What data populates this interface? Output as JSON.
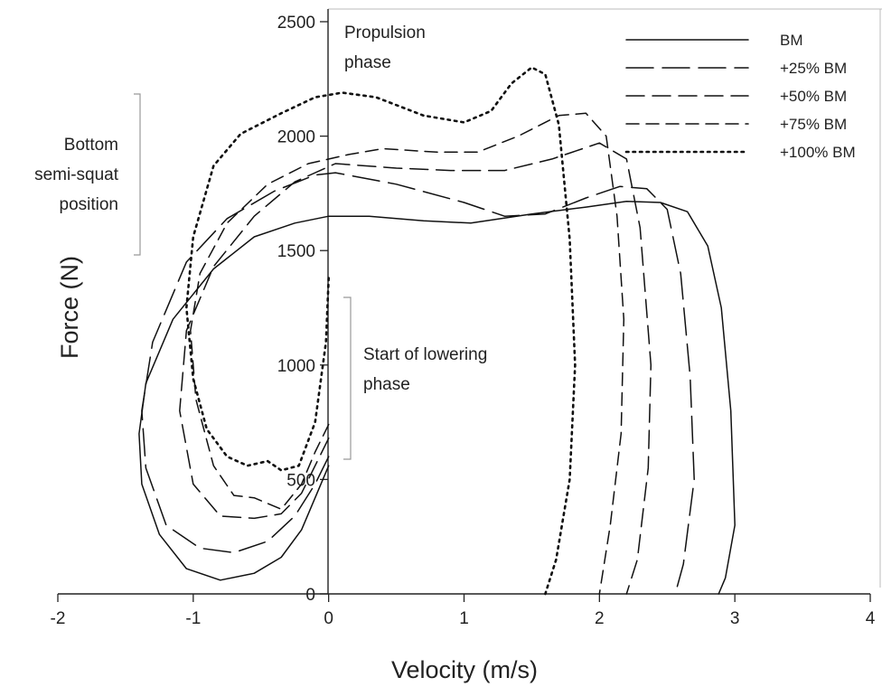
{
  "chart_data": {
    "type": "line",
    "xlabel": "Velocity (m/s)",
    "ylabel": "Force (N)",
    "xlim": [
      -2,
      4
    ],
    "ylim": [
      0,
      2500
    ],
    "x_ticks": [
      -2,
      -1,
      0,
      1,
      2,
      3,
      4
    ],
    "y_ticks": [
      0,
      500,
      1000,
      1500,
      2000,
      2500
    ],
    "grid": false,
    "legend_position": "top-right",
    "annotations": {
      "propulsion": [
        "Propulsion",
        "phase"
      ],
      "bottom": [
        "Bottom",
        "semi-squat",
        "position"
      ],
      "lowering": [
        "Start of lowering",
        "phase"
      ]
    },
    "series": [
      {
        "name": "BM",
        "dash": "solid",
        "points": [
          [
            0,
            560
          ],
          [
            -0.1,
            420
          ],
          [
            -0.2,
            280
          ],
          [
            -0.35,
            160
          ],
          [
            -0.55,
            90
          ],
          [
            -0.8,
            60
          ],
          [
            -1.05,
            110
          ],
          [
            -1.25,
            260
          ],
          [
            -1.38,
            480
          ],
          [
            -1.4,
            700
          ],
          [
            -1.35,
            920
          ],
          [
            -1.15,
            1200
          ],
          [
            -0.85,
            1420
          ],
          [
            -0.55,
            1560
          ],
          [
            -0.25,
            1620
          ],
          [
            0,
            1650
          ],
          [
            0.3,
            1650
          ],
          [
            0.7,
            1630
          ],
          [
            1.05,
            1620
          ],
          [
            1.5,
            1660
          ],
          [
            1.9,
            1690
          ],
          [
            2.2,
            1715
          ],
          [
            2.45,
            1710
          ],
          [
            2.65,
            1670
          ],
          [
            2.8,
            1520
          ],
          [
            2.9,
            1250
          ],
          [
            2.97,
            800
          ],
          [
            3.0,
            300
          ],
          [
            2.93,
            70
          ],
          [
            2.88,
            0
          ]
        ]
      },
      {
        "name": "+25% BM",
        "dash": "long",
        "points": [
          [
            0,
            600
          ],
          [
            -0.1,
            480
          ],
          [
            -0.25,
            340
          ],
          [
            -0.45,
            230
          ],
          [
            -0.7,
            180
          ],
          [
            -0.95,
            200
          ],
          [
            -1.2,
            300
          ],
          [
            -1.35,
            550
          ],
          [
            -1.38,
            800
          ],
          [
            -1.3,
            1100
          ],
          [
            -1.05,
            1450
          ],
          [
            -0.75,
            1640
          ],
          [
            -0.4,
            1760
          ],
          [
            -0.1,
            1830
          ],
          [
            0.05,
            1840
          ],
          [
            0.5,
            1790
          ],
          [
            1.0,
            1710
          ],
          [
            1.3,
            1650
          ],
          [
            1.6,
            1660
          ],
          [
            1.9,
            1730
          ],
          [
            2.15,
            1780
          ],
          [
            2.35,
            1770
          ],
          [
            2.5,
            1680
          ],
          [
            2.6,
            1400
          ],
          [
            2.67,
            950
          ],
          [
            2.7,
            500
          ],
          [
            2.62,
            130
          ],
          [
            2.56,
            0
          ]
        ]
      },
      {
        "name": "+50% BM",
        "dash": "medium",
        "points": [
          [
            0,
            680
          ],
          [
            -0.1,
            560
          ],
          [
            -0.2,
            440
          ],
          [
            -0.35,
            350
          ],
          [
            -0.55,
            330
          ],
          [
            -0.8,
            340
          ],
          [
            -1.0,
            480
          ],
          [
            -1.1,
            800
          ],
          [
            -1.05,
            1150
          ],
          [
            -0.85,
            1430
          ],
          [
            -0.55,
            1650
          ],
          [
            -0.25,
            1800
          ],
          [
            0.05,
            1880
          ],
          [
            0.5,
            1860
          ],
          [
            0.9,
            1850
          ],
          [
            1.3,
            1850
          ],
          [
            1.65,
            1900
          ],
          [
            2.0,
            1970
          ],
          [
            2.2,
            1900
          ],
          [
            2.3,
            1600
          ],
          [
            2.38,
            1000
          ],
          [
            2.36,
            550
          ],
          [
            2.28,
            150
          ],
          [
            2.2,
            0
          ]
        ]
      },
      {
        "name": "+75% BM",
        "dash": "short",
        "points": [
          [
            0,
            740
          ],
          [
            -0.1,
            620
          ],
          [
            -0.2,
            480
          ],
          [
            -0.35,
            370
          ],
          [
            -0.55,
            420
          ],
          [
            -0.7,
            430
          ],
          [
            -0.85,
            560
          ],
          [
            -0.98,
            850
          ],
          [
            -1.02,
            1150
          ],
          [
            -0.95,
            1400
          ],
          [
            -0.75,
            1620
          ],
          [
            -0.45,
            1790
          ],
          [
            -0.15,
            1880
          ],
          [
            0.15,
            1920
          ],
          [
            0.4,
            1945
          ],
          [
            0.8,
            1930
          ],
          [
            1.1,
            1930
          ],
          [
            1.4,
            2000
          ],
          [
            1.7,
            2090
          ],
          [
            1.9,
            2100
          ],
          [
            2.05,
            2000
          ],
          [
            2.13,
            1650
          ],
          [
            2.18,
            1200
          ],
          [
            2.16,
            700
          ],
          [
            2.08,
            300
          ],
          [
            2.0,
            0
          ]
        ]
      },
      {
        "name": "+100% BM",
        "dash": "dot",
        "points": [
          [
            0,
            1380
          ],
          [
            -0.02,
            1100
          ],
          [
            -0.1,
            750
          ],
          [
            -0.22,
            560
          ],
          [
            -0.35,
            540
          ],
          [
            -0.45,
            580
          ],
          [
            -0.6,
            560
          ],
          [
            -0.75,
            600
          ],
          [
            -0.9,
            720
          ],
          [
            -1.0,
            940
          ],
          [
            -1.05,
            1250
          ],
          [
            -1.0,
            1560
          ],
          [
            -0.85,
            1870
          ],
          [
            -0.65,
            2010
          ],
          [
            -0.35,
            2100
          ],
          [
            -0.1,
            2170
          ],
          [
            0.1,
            2190
          ],
          [
            0.35,
            2170
          ],
          [
            0.7,
            2090
          ],
          [
            1.0,
            2060
          ],
          [
            1.2,
            2110
          ],
          [
            1.35,
            2230
          ],
          [
            1.5,
            2300
          ],
          [
            1.6,
            2270
          ],
          [
            1.7,
            2050
          ],
          [
            1.78,
            1550
          ],
          [
            1.82,
            1000
          ],
          [
            1.78,
            500
          ],
          [
            1.68,
            150
          ],
          [
            1.6,
            0
          ]
        ]
      }
    ]
  }
}
